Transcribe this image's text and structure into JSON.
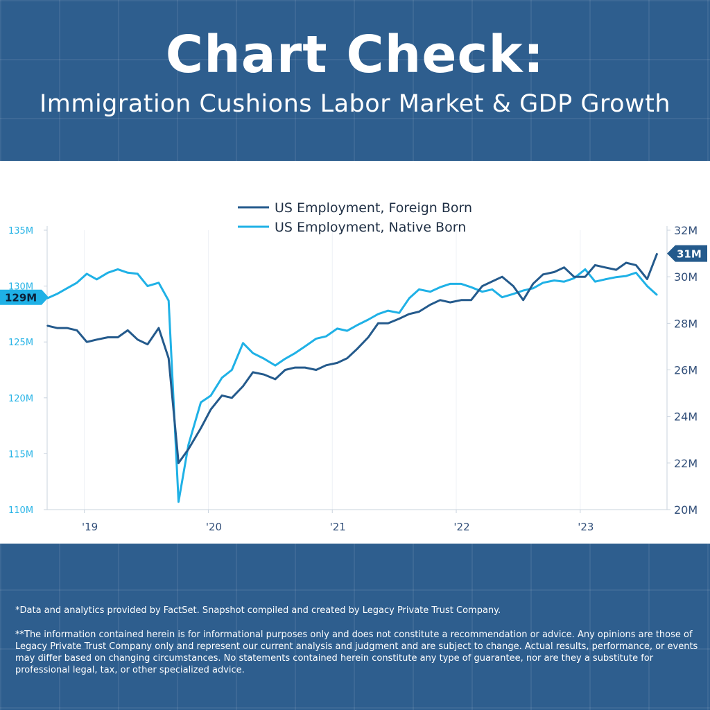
{
  "header": {
    "title": "Chart Check:",
    "subtitle": "Immigration Cushions Labor Market & GDP Growth"
  },
  "colors": {
    "background": "#2e5e8e",
    "foreign_born": "#245a8c",
    "native_born": "#1fb1e6",
    "left_axis": "#28b4e6",
    "right_axis": "#33507a"
  },
  "chart_data": {
    "type": "line",
    "legend_position": "top-center",
    "x_tick_labels": [
      {
        "label": "'19",
        "t": 2019.0
      },
      {
        "label": "'20",
        "t": 2020.0
      },
      {
        "label": "'21",
        "t": 2021.0
      },
      {
        "label": "'22",
        "t": 2022.0
      },
      {
        "label": "'23",
        "t": 2023.0
      }
    ],
    "x_range": [
      2018.7,
      2023.7
    ],
    "left_axis": {
      "range": [
        110,
        135
      ],
      "ticks": [
        {
          "value": 110,
          "label": "110M"
        },
        {
          "value": 115,
          "label": "115M"
        },
        {
          "value": 120,
          "label": "120M"
        },
        {
          "value": 125,
          "label": "125M"
        },
        {
          "value": 130,
          "label": "130M"
        },
        {
          "value": 135,
          "label": "135M"
        }
      ],
      "badge": {
        "value": 129,
        "label": "129M"
      }
    },
    "right_axis": {
      "range": [
        20,
        32
      ],
      "ticks": [
        {
          "value": 20,
          "label": "20M"
        },
        {
          "value": 22,
          "label": "22M"
        },
        {
          "value": 24,
          "label": "24M"
        },
        {
          "value": 26,
          "label": "26M"
        },
        {
          "value": 28,
          "label": "28M"
        },
        {
          "value": 30,
          "label": "30M"
        },
        {
          "value": 32,
          "label": "32M"
        }
      ],
      "badge": {
        "value": 31,
        "label": "31M"
      }
    },
    "series": [
      {
        "name": "US Employment, Foreign Born",
        "axis": "right",
        "color_key": "foreign_born",
        "t": [
          2018.7,
          2018.78,
          2018.86,
          2018.94,
          2019.02,
          2019.1,
          2019.19,
          2019.27,
          2019.35,
          2019.43,
          2019.51,
          2019.6,
          2019.68,
          2019.76,
          2019.84,
          2019.94,
          2020.02,
          2020.11,
          2020.19,
          2020.28,
          2020.36,
          2020.45,
          2020.54,
          2020.62,
          2020.7,
          2020.78,
          2020.87,
          2020.95,
          2021.04,
          2021.12,
          2021.2,
          2021.29,
          2021.37,
          2021.45,
          2021.54,
          2021.62,
          2021.7,
          2021.79,
          2021.87,
          2021.95,
          2022.04,
          2022.12,
          2022.21,
          2022.29,
          2022.37,
          2022.46,
          2022.54,
          2022.62,
          2022.7,
          2022.79,
          2022.87,
          2022.95,
          2023.04,
          2023.12,
          2023.2,
          2023.29,
          2023.37,
          2023.45,
          2023.54,
          2023.62
        ],
        "values": [
          27.9,
          27.8,
          27.8,
          27.7,
          27.2,
          27.3,
          27.4,
          27.4,
          27.7,
          27.3,
          27.1,
          27.8,
          26.5,
          22.0,
          22.6,
          23.5,
          24.3,
          24.9,
          24.8,
          25.3,
          25.9,
          25.8,
          25.6,
          26.0,
          26.1,
          26.1,
          26.0,
          26.2,
          26.3,
          26.5,
          26.9,
          27.4,
          28.0,
          28.0,
          28.2,
          28.4,
          28.5,
          28.8,
          29.0,
          28.9,
          29.0,
          29.0,
          29.6,
          29.8,
          30.0,
          29.6,
          29.0,
          29.7,
          30.1,
          30.2,
          30.4,
          30.0,
          30.0,
          30.5,
          30.4,
          30.3,
          30.6,
          30.5,
          29.9,
          31.0
        ]
      },
      {
        "name": "US Employment, Native Born",
        "axis": "left",
        "color_key": "native_born",
        "t": [
          2018.7,
          2018.78,
          2018.86,
          2018.94,
          2019.02,
          2019.1,
          2019.19,
          2019.27,
          2019.35,
          2019.43,
          2019.51,
          2019.6,
          2019.68,
          2019.76,
          2019.84,
          2019.94,
          2020.02,
          2020.11,
          2020.19,
          2020.28,
          2020.36,
          2020.45,
          2020.54,
          2020.62,
          2020.7,
          2020.78,
          2020.87,
          2020.95,
          2021.04,
          2021.12,
          2021.2,
          2021.29,
          2021.37,
          2021.45,
          2021.54,
          2021.62,
          2021.7,
          2021.79,
          2021.87,
          2021.95,
          2022.04,
          2022.12,
          2022.21,
          2022.29,
          2022.37,
          2022.46,
          2022.54,
          2022.62,
          2022.7,
          2022.79,
          2022.87,
          2022.95,
          2023.04,
          2023.12,
          2023.2,
          2023.29,
          2023.37,
          2023.45,
          2023.54,
          2023.62
        ],
        "values": [
          128.9,
          129.3,
          129.8,
          130.3,
          131.1,
          130.6,
          131.2,
          131.5,
          131.2,
          131.1,
          130.0,
          130.3,
          128.7,
          110.7,
          115.8,
          119.6,
          120.2,
          121.8,
          122.5,
          124.9,
          124.0,
          123.5,
          122.9,
          123.5,
          124.0,
          124.6,
          125.3,
          125.5,
          126.2,
          126.0,
          126.5,
          127.0,
          127.5,
          127.8,
          127.6,
          128.9,
          129.7,
          129.5,
          129.9,
          130.2,
          130.2,
          129.9,
          129.5,
          129.7,
          129.0,
          129.3,
          129.6,
          129.8,
          130.3,
          130.5,
          130.4,
          130.7,
          131.5,
          130.4,
          130.6,
          130.8,
          130.9,
          131.2,
          130.0,
          129.2
        ]
      }
    ]
  },
  "footer": {
    "note1": "*Data and analytics provided by FactSet. Snapshot compiled and created by Legacy Private Trust Company.",
    "note2": "**The information contained herein is for informational purposes only and does not constitute a recommendation or advice. Any opinions are those of Legacy Private Trust Company only and represent our current analysis and judgment and are subject to change. Actual results, performance, or events may differ based on changing circumstances. No statements contained herein constitute any type of guarantee, nor are they a substitute for professional legal, tax, or other specialized advice."
  }
}
